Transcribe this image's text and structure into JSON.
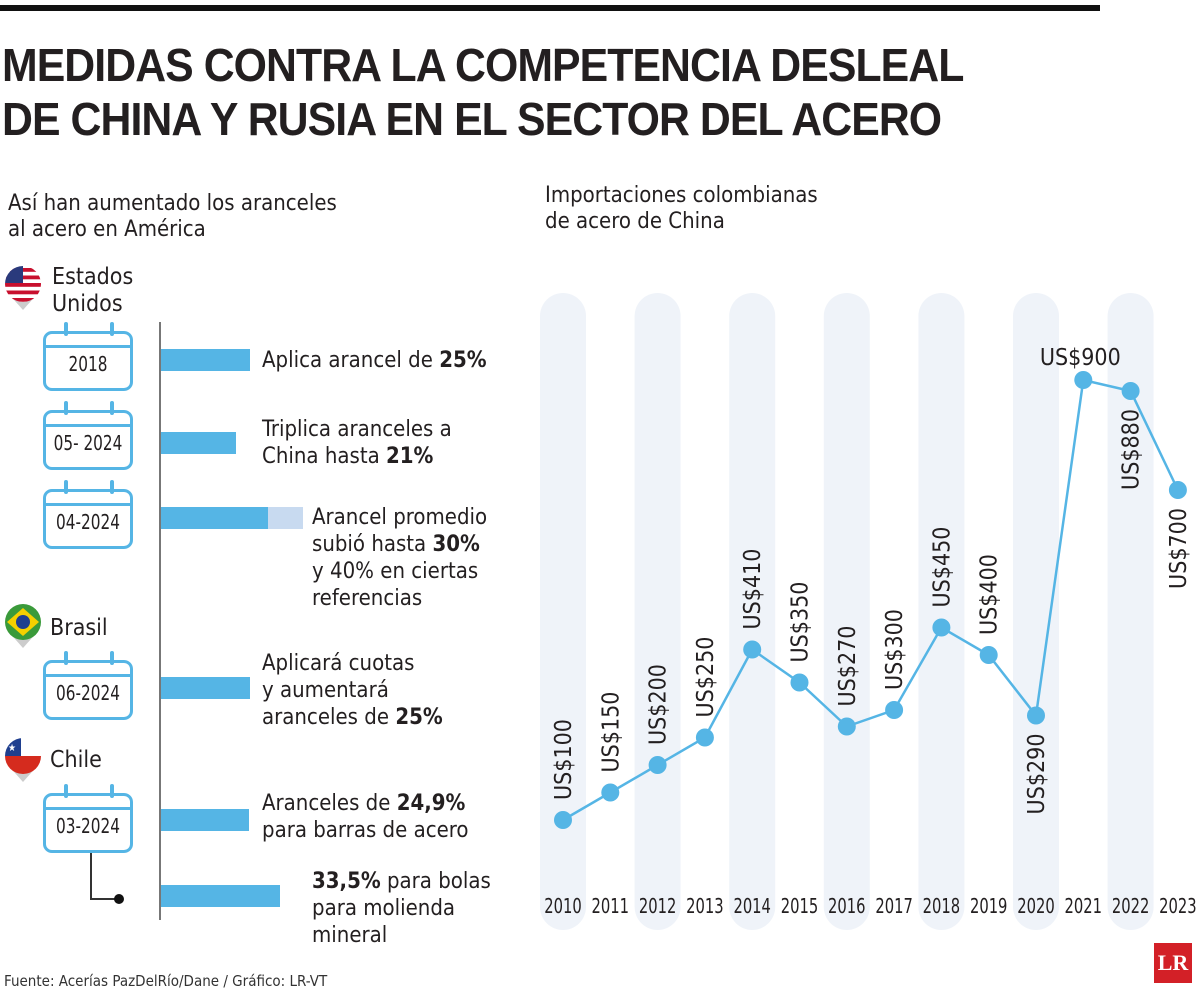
{
  "title": [
    "MEDIDAS CONTRA LA COMPETENCIA DESLEAL",
    "DE CHINA Y RUSIA EN EL SECTOR DEL ACERO"
  ],
  "left": {
    "subtitle": "Así han aumentado los aranceles\nal acero en América",
    "countries": [
      {
        "name": "Estados\nUnidos",
        "flag": "us-flag-pin-icon"
      },
      {
        "name": "Brasil",
        "flag": "brazil-flag-pin-icon"
      },
      {
        "name": "Chile",
        "flag": "chile-flag-pin-icon"
      }
    ],
    "measures": [
      {
        "date": "2018",
        "pre": "Aplica arancel de ",
        "bold": "25%",
        "post": "",
        "tariff": 25
      },
      {
        "date": "05- 2024",
        "pre": "Triplica aranceles a\nChina hasta ",
        "bold": "21%",
        "post": "",
        "tariff": 21
      },
      {
        "date": "04-2024",
        "pre": "Arancel promedio\nsubió hasta ",
        "bold": "30%",
        "post": "\ny 40% en ciertas\nreferencias",
        "tariff": 30,
        "tariff_max": 40
      },
      {
        "date": "06-2024",
        "pre": "Aplicará cuotas\ny aumentará\naranceles de ",
        "bold": "25%",
        "post": "",
        "tariff": 25
      },
      {
        "date": "03-2024",
        "pre": "Aranceles de ",
        "bold": "24,9%",
        "post": "\npara barras de acero",
        "tariff": 24.9
      },
      {
        "date": "",
        "pre": "",
        "bold": "33,5%",
        "post": " para bolas\npara molienda\nmineral",
        "tariff": 33.5
      }
    ]
  },
  "chart_data": {
    "type": "line",
    "title": "Importaciones colombianas\nde acero de China",
    "categories": [
      "2010",
      "2011",
      "2012",
      "2013",
      "2014",
      "2015",
      "2016",
      "2017",
      "2018",
      "2019",
      "2020",
      "2021",
      "2022",
      "2023"
    ],
    "values": [
      100,
      150,
      200,
      250,
      410,
      350,
      270,
      300,
      450,
      400,
      290,
      900,
      880,
      700
    ],
    "labels": [
      "US$100",
      "US$150",
      "US$200",
      "US$250",
      "US$410",
      "US$350",
      "US$270",
      "US$300",
      "US$450",
      "US$400",
      "US$290",
      "US$900",
      "US$880",
      "US$700"
    ],
    "color": "#55b5e5",
    "band_color": "#eff3f9"
  },
  "footer": {
    "source": "Fuente: Acerías PazDelRío/Dane  / Gráfico: LR-VT",
    "logo": "LR"
  },
  "colors": {
    "bar": "#55b5e5",
    "bar_light": "#c8daf0"
  }
}
